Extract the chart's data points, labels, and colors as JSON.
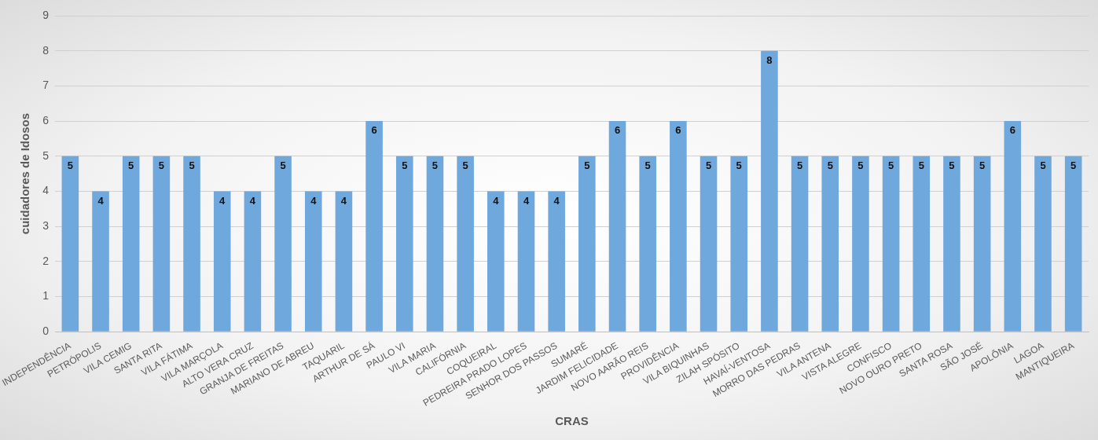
{
  "chart_data": {
    "type": "bar",
    "xlabel": "CRAS",
    "ylabel": "cuidadores de Idosos",
    "categories": [
      "INDEPENDÊNCIA",
      "PETRÓPOLIS",
      "VILA CEMIG",
      "SANTA RITA",
      "VILA FÁTIMA",
      "VILA MARÇOLA",
      "ALTO VERA CRUZ",
      "GRANJA DE FREITAS",
      "MARIANO DE ABREU",
      "TAQUARIL",
      "ARTHUR DE SÁ",
      "PAULO VI",
      "VILA MARIA",
      "CALIFÓRNIA",
      "COQUEIRAL",
      "PEDREIRA PRADO LOPES",
      "SENHOR DOS PASSOS",
      "SUMARÉ",
      "JARDIM FELICIDADE",
      "NOVO AARÃO REIS",
      "PROVIDÊNCIA",
      "VILA BIQUINHAS",
      "ZILAH SPÓSITO",
      "HAVAÍ-VENTOSA",
      "MORRO DAS PEDRAS",
      "VILA ANTENA",
      "VISTA ALEGRE",
      "CONFISCO",
      "NOVO OURO PRETO",
      "SANTA ROSA",
      "SÃO JOSÉ",
      "APOLÔNIA",
      "LAGOA",
      "MANTIQUEIRA"
    ],
    "values": [
      5,
      4,
      5,
      5,
      5,
      4,
      4,
      5,
      4,
      4,
      6,
      5,
      5,
      5,
      4,
      4,
      4,
      5,
      6,
      5,
      6,
      5,
      5,
      8,
      5,
      5,
      5,
      5,
      5,
      5,
      5,
      6,
      5,
      5
    ],
    "color": "#6fa8dc",
    "ylim": [
      0,
      9
    ],
    "yticks": [
      0,
      1,
      2,
      3,
      4,
      5,
      6,
      7,
      8,
      9
    ],
    "grid": "y",
    "data_labels": true
  }
}
